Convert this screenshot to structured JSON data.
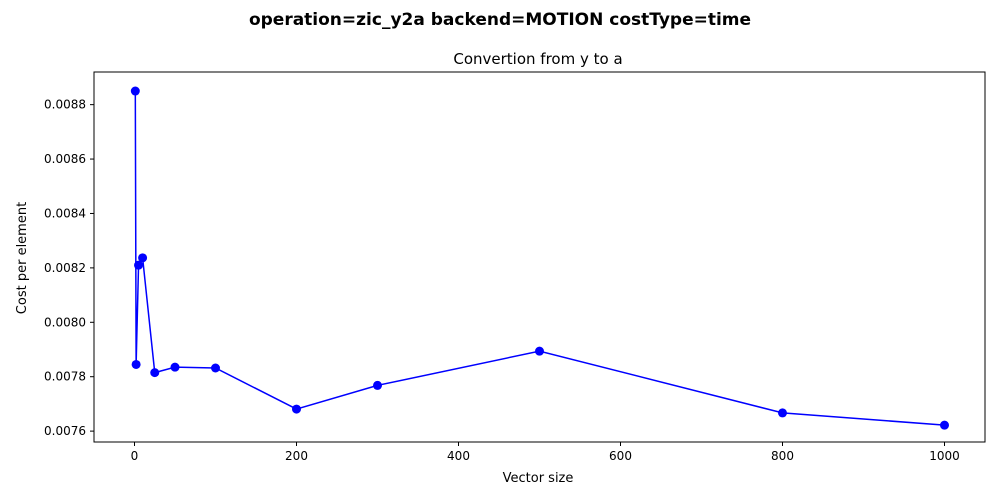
{
  "chart_data": {
    "type": "line",
    "suptitle": "operation=zic_y2a backend=MOTION costType=time",
    "title": "Convertion from y to a",
    "xlabel": "Vector size",
    "ylabel": "Cost per element",
    "xlim": [
      -50,
      1050
    ],
    "ylim": [
      0.00756,
      0.00892
    ],
    "xticks": [
      0,
      200,
      400,
      600,
      800,
      1000
    ],
    "xtick_labels": [
      "0",
      "200",
      "400",
      "600",
      "800",
      "1000"
    ],
    "yticks": [
      0.0076,
      0.0078,
      0.008,
      0.0082,
      0.0084,
      0.0086,
      0.0088
    ],
    "ytick_labels": [
      "0.0076",
      "0.0078",
      "0.0080",
      "0.0082",
      "0.0084",
      "0.0086",
      "0.0088"
    ],
    "grid": false,
    "series": [
      {
        "name": "cost",
        "color": "#0000ff",
        "x": [
          1,
          2,
          5,
          10,
          25,
          50,
          100,
          200,
          300,
          500,
          800,
          1000
        ],
        "y": [
          0.00885,
          0.007845,
          0.00821,
          0.008237,
          0.007815,
          0.007835,
          0.007832,
          0.007681,
          0.007768,
          0.007894,
          0.007667,
          0.007622
        ]
      }
    ]
  }
}
